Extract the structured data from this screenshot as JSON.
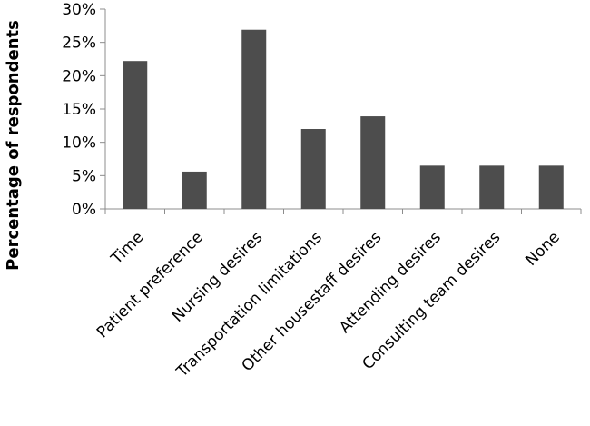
{
  "chart_data": {
    "type": "bar",
    "title": "",
    "xlabel": "",
    "ylabel": "Percentage of respondents",
    "categories": [
      "Time",
      "Patient preference",
      "Nursing desires",
      "Transportation limitations",
      "Other housestaff desires",
      "Attending desires",
      "Consulting team desires",
      "None"
    ],
    "values": [
      22.2,
      5.6,
      26.9,
      12.0,
      13.9,
      6.5,
      6.5,
      6.5
    ],
    "ylim": [
      0,
      30
    ],
    "yticks": [
      0,
      5,
      10,
      15,
      20,
      25,
      30
    ],
    "ytick_labels": [
      "0%",
      "5%",
      "10%",
      "15%",
      "20%",
      "25%",
      "30%"
    ],
    "grid": false,
    "legend": "none",
    "bar_color": "#4d4d4d"
  }
}
